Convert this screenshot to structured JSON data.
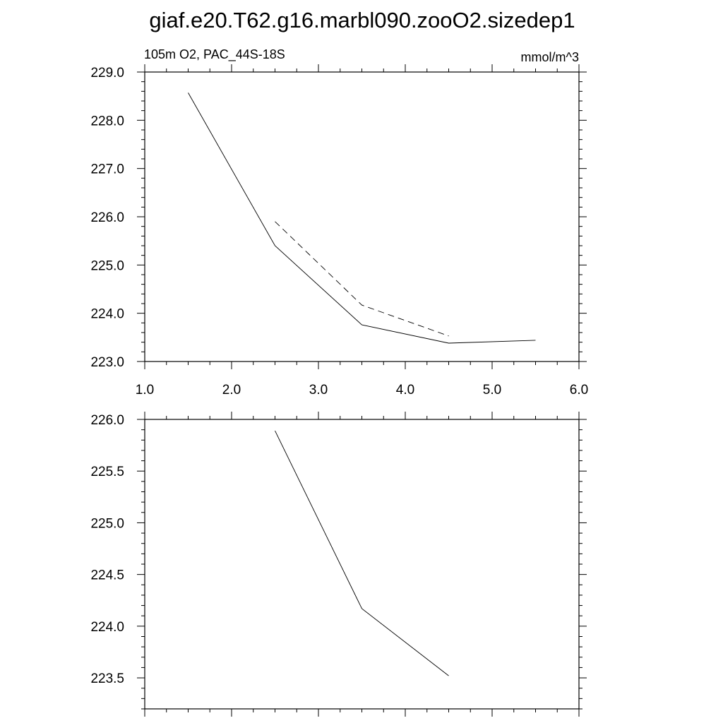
{
  "figure": {
    "title": "giaf.e20.T62.g16.marbl090.zooO2.sizedep1"
  },
  "chart_data": [
    {
      "type": "line",
      "left_label": "105m O2, PAC_44S-18S",
      "right_label": "mmol/m^3",
      "xlim": [
        1.0,
        6.0
      ],
      "ylim": [
        223.0,
        229.0
      ],
      "x_ticks": [
        "1.0",
        "2.0",
        "3.0",
        "4.0",
        "5.0",
        "6.0"
      ],
      "y_ticks": [
        "223.0",
        "224.0",
        "225.0",
        "226.0",
        "227.0",
        "228.0",
        "229.0"
      ],
      "x_minor_step": 0.25,
      "y_minor_step": 0.2,
      "grid": false,
      "series": [
        {
          "style": "solid",
          "x": [
            1.5,
            2.5,
            3.5,
            4.5,
            5.5
          ],
          "y": [
            228.57,
            225.4,
            223.76,
            223.38,
            223.44
          ]
        },
        {
          "style": "dashed",
          "x": [
            2.5,
            3.5,
            4.5
          ],
          "y": [
            225.9,
            224.17,
            223.53
          ]
        }
      ]
    },
    {
      "type": "line",
      "xlim": [
        1.0,
        6.0
      ],
      "ylim": [
        223.2,
        226.0
      ],
      "x_ticks": [],
      "y_ticks": [
        "223.5",
        "224.0",
        "224.5",
        "225.0",
        "225.5",
        "226.0"
      ],
      "x_minor_step": 0.25,
      "y_minor_step": 0.1,
      "grid": false,
      "series": [
        {
          "style": "solid",
          "x": [
            2.5,
            3.5,
            4.5
          ],
          "y": [
            225.89,
            224.17,
            223.52
          ]
        }
      ]
    }
  ]
}
